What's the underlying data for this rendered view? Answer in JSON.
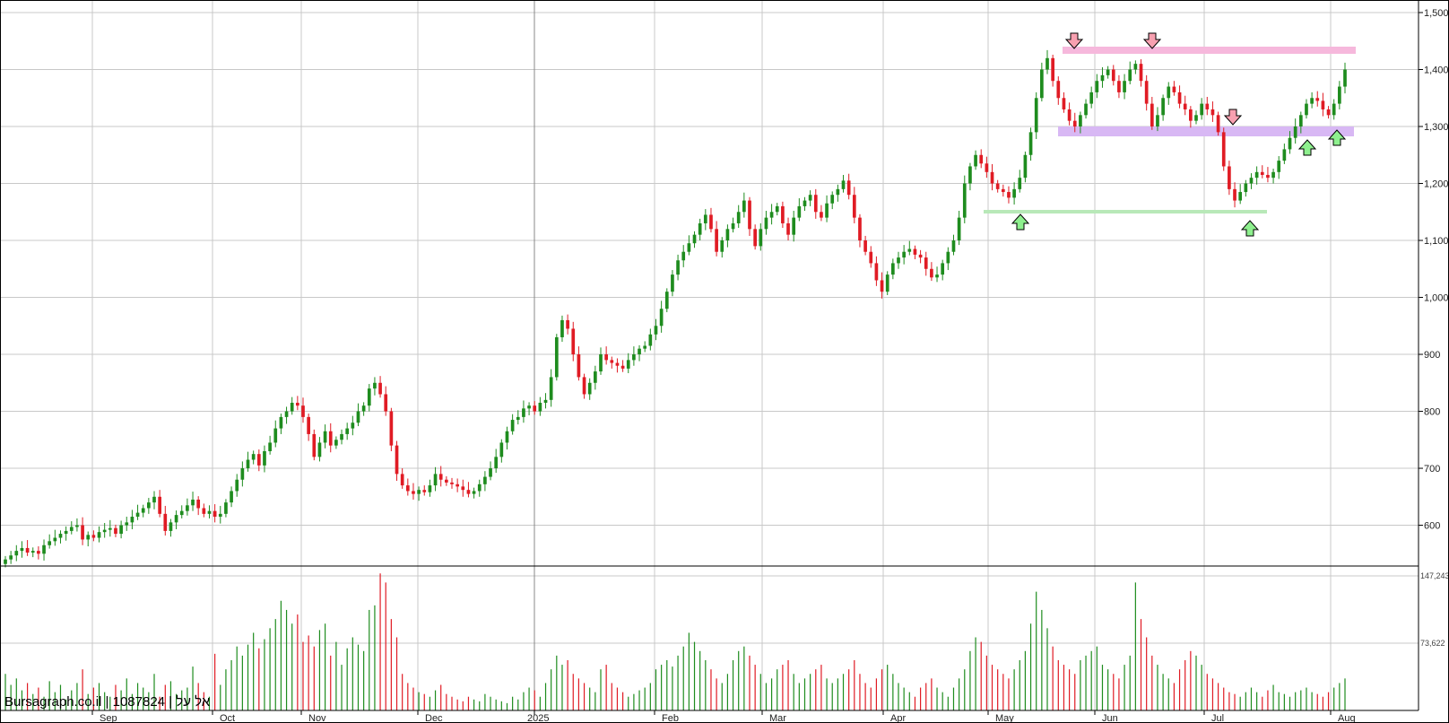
{
  "watermark": "Bursagraph.co.il | 1087824 | אל על",
  "colors": {
    "up": "#1e8c1e",
    "down": "#e01b24",
    "grid": "#c8c8c8",
    "resistance": "#f6b8dc",
    "support": "#d8b8f4",
    "support_low": "#b8e8b8"
  },
  "chart_data": {
    "type": "candlestick",
    "ylim": [
      530,
      1500
    ],
    "y_ticks": [
      "1,500",
      "1,400",
      "1,300",
      "1,200",
      "1,100",
      "1,000",
      "900",
      "800",
      "700",
      "600"
    ],
    "y_tick_values": [
      1500,
      1400,
      1300,
      1200,
      1100,
      1000,
      900,
      800,
      700,
      600
    ],
    "x_ticks": [
      "Sep",
      "Oct",
      "Nov",
      "Dec",
      "2025",
      "Feb",
      "Mar",
      "Apr",
      "May",
      "Jun",
      "Jul",
      "Aug"
    ],
    "volume_ticks": [
      "147,243",
      "73,622"
    ],
    "volume_tick_values": [
      147243,
      73622
    ],
    "series_close": [
      540,
      547,
      555,
      560,
      552,
      555,
      550,
      565,
      572,
      578,
      585,
      590,
      597,
      600,
      575,
      583,
      578,
      588,
      592,
      595,
      585,
      600,
      605,
      615,
      622,
      630,
      640,
      650,
      620,
      590,
      605,
      618,
      625,
      635,
      645,
      630,
      620,
      625,
      615,
      620,
      640,
      660,
      680,
      700,
      715,
      725,
      705,
      730,
      745,
      770,
      790,
      800,
      815,
      810,
      790,
      760,
      720,
      745,
      765,
      740,
      750,
      760,
      770,
      780,
      800,
      810,
      840,
      850,
      830,
      800,
      740,
      690,
      670,
      660,
      655,
      662,
      658,
      670,
      690,
      680,
      675,
      672,
      668,
      662,
      655,
      660,
      672,
      685,
      700,
      720,
      745,
      765,
      785,
      790,
      805,
      810,
      800,
      815,
      820,
      860,
      930,
      960,
      945,
      900,
      860,
      830,
      850,
      870,
      900,
      890,
      885,
      880,
      875,
      890,
      900,
      910,
      915,
      935,
      950,
      980,
      1010,
      1040,
      1065,
      1080,
      1095,
      1110,
      1130,
      1145,
      1120,
      1080,
      1100,
      1120,
      1130,
      1150,
      1170,
      1120,
      1090,
      1120,
      1140,
      1150,
      1160,
      1130,
      1110,
      1140,
      1160,
      1170,
      1180,
      1150,
      1140,
      1165,
      1180,
      1190,
      1205,
      1180,
      1140,
      1100,
      1080,
      1060,
      1030,
      1010,
      1040,
      1060,
      1070,
      1080,
      1085,
      1075,
      1070,
      1050,
      1035,
      1040,
      1060,
      1080,
      1100,
      1140,
      1200,
      1230,
      1250,
      1235,
      1220,
      1200,
      1190,
      1185,
      1175,
      1190,
      1210,
      1250,
      1290,
      1350,
      1400,
      1420,
      1380,
      1350,
      1330,
      1310,
      1300,
      1320,
      1340,
      1360,
      1380,
      1390,
      1400,
      1380,
      1360,
      1380,
      1400,
      1410,
      1380,
      1340,
      1300,
      1320,
      1350,
      1370,
      1360,
      1340,
      1330,
      1310,
      1320,
      1340,
      1330,
      1320,
      1290,
      1230,
      1190,
      1170,
      1185,
      1200,
      1210,
      1220,
      1215,
      1210,
      1220,
      1240,
      1260,
      1280,
      1300,
      1320,
      1340,
      1350,
      1345,
      1330,
      1320,
      1340,
      1370,
      1400
    ],
    "volume": [
      40000,
      28000,
      35000,
      22000,
      30000,
      18000,
      25000,
      15000,
      32000,
      20000,
      28000,
      12000,
      22000,
      30000,
      45000,
      18000,
      25000,
      30000,
      20000,
      15000,
      28000,
      22000,
      35000,
      18000,
      30000,
      25000,
      20000,
      40000,
      15000,
      28000,
      32000,
      18000,
      22000,
      25000,
      48000,
      30000,
      20000,
      15000,
      62000,
      28000,
      45000,
      55000,
      70000,
      60000,
      72000,
      85000,
      68000,
      78000,
      90000,
      100000,
      120000,
      110000,
      95000,
      105000,
      75000,
      82000,
      70000,
      88000,
      95000,
      60000,
      75000,
      50000,
      68000,
      80000,
      72000,
      65000,
      110000,
      115000,
      150000,
      140000,
      100000,
      80000,
      40000,
      30000,
      25000,
      20000,
      18000,
      15000,
      22000,
      28000,
      18000,
      15000,
      12000,
      10000,
      15000,
      12000,
      10000,
      18000,
      15000,
      12000,
      10000,
      8000,
      15000,
      12000,
      20000,
      25000,
      22000,
      15000,
      30000,
      45000,
      60000,
      50000,
      55000,
      40000,
      35000,
      30000,
      25000,
      20000,
      45000,
      50000,
      30000,
      25000,
      20000,
      15000,
      18000,
      22000,
      25000,
      30000,
      45000,
      50000,
      55000,
      48000,
      60000,
      70000,
      85000,
      75000,
      65000,
      55000,
      45000,
      35000,
      30000,
      40000,
      55000,
      65000,
      70000,
      60000,
      50000,
      40000,
      30000,
      35000,
      45000,
      50000,
      55000,
      40000,
      30000,
      35000,
      40000,
      45000,
      50000,
      35000,
      30000,
      35000,
      40000,
      45000,
      55000,
      40000,
      30000,
      25000,
      35000,
      45000,
      50000,
      40000,
      30000,
      25000,
      20000,
      15000,
      25000,
      30000,
      35000,
      25000,
      20000,
      15000,
      25000,
      35000,
      45000,
      65000,
      80000,
      75000,
      60000,
      50000,
      45000,
      40000,
      35000,
      45000,
      55000,
      65000,
      95000,
      130000,
      110000,
      90000,
      70000,
      55000,
      50000,
      45000,
      40000,
      55000,
      60000,
      65000,
      70000,
      50000,
      45000,
      40000,
      35000,
      50000,
      60000,
      140000,
      100000,
      80000,
      60000,
      50000,
      40000,
      35000,
      30000,
      45000,
      55000,
      65000,
      60000,
      50000,
      40000,
      35000,
      30000,
      25000,
      20000,
      18000,
      15000,
      20000,
      25000,
      20000,
      15000,
      22000,
      28000,
      20000,
      18000,
      15000,
      20000,
      22000,
      25000,
      20000,
      18000,
      15000,
      20000,
      25000,
      30000,
      35000,
      40000,
      50000
    ]
  },
  "markers": {
    "up": [
      {
        "date": "May",
        "label": "up"
      }
    ],
    "down": [
      {
        "date": "Jun",
        "label": "down"
      }
    ]
  }
}
